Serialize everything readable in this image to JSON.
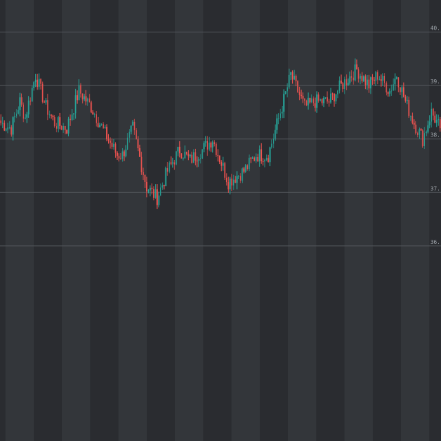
{
  "theme": {
    "background": "#2a2c30",
    "band_alt": "#33363a",
    "grid": "#55585d",
    "up": "#26a69a",
    "down": "#ef5350",
    "tick_text": "#9aa0a6"
  },
  "chart_data": {
    "type": "candlestick",
    "title": "",
    "xlabel": "",
    "ylabel": "",
    "ylim": [
      32.35,
      40.6
    ],
    "gridlines": [
      40.0,
      39.0,
      38.0,
      37.0,
      36.0
    ],
    "y_tick_labels": [
      "40.",
      "39.",
      "38.",
      "37.",
      "36."
    ],
    "axis_side": "right",
    "vertical_bands": true,
    "legend": "none",
    "anchors": [
      [
        0,
        38.3
      ],
      [
        6,
        38.2
      ],
      [
        11,
        38.7
      ],
      [
        14,
        38.4
      ],
      [
        20,
        39.2
      ],
      [
        26,
        38.6
      ],
      [
        31,
        38.3
      ],
      [
        38,
        38.2
      ],
      [
        45,
        38.9
      ],
      [
        52,
        38.6
      ],
      [
        60,
        38.1
      ],
      [
        67,
        37.7
      ],
      [
        70,
        37.7
      ],
      [
        76,
        38.2
      ],
      [
        84,
        37.1
      ],
      [
        90,
        36.9
      ],
      [
        96,
        37.4
      ],
      [
        103,
        37.8
      ],
      [
        109,
        37.6
      ],
      [
        116,
        37.8
      ],
      [
        122,
        38.0
      ],
      [
        131,
        37.2
      ],
      [
        140,
        37.4
      ],
      [
        147,
        37.7
      ],
      [
        154,
        37.7
      ],
      [
        161,
        38.5
      ],
      [
        167,
        39.2
      ],
      [
        175,
        38.6
      ],
      [
        181,
        38.7
      ],
      [
        189,
        38.7
      ],
      [
        196,
        39.0
      ],
      [
        205,
        39.3
      ],
      [
        212,
        39.0
      ],
      [
        217,
        39.2
      ],
      [
        224,
        38.9
      ],
      [
        228,
        39.2
      ],
      [
        233,
        38.7
      ],
      [
        238,
        38.3
      ],
      [
        243,
        38.0
      ],
      [
        248,
        38.5
      ],
      [
        253,
        38.2
      ]
    ],
    "candles": []
  }
}
